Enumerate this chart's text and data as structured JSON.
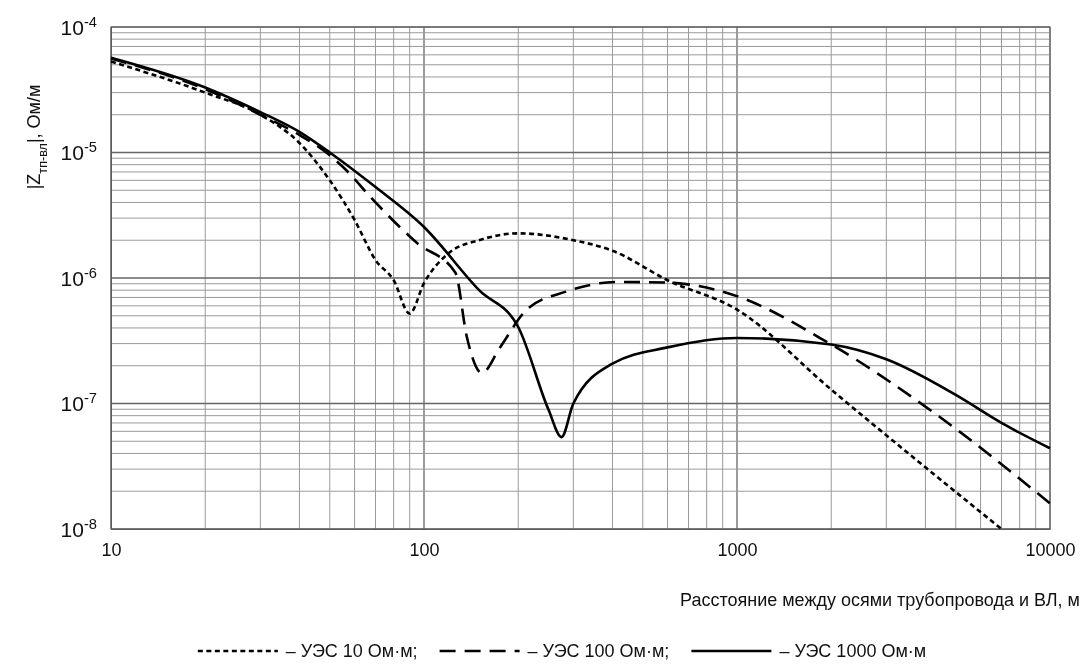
{
  "chart_data": {
    "type": "line",
    "xlabel": "Расстояние между осями трубопровода и ВЛ, м",
    "ylabel": "|Z$_{тп-вл}$|, Ом/м",
    "log": "xy",
    "grid": true,
    "legend": "bottom",
    "marker": "none",
    "xlim": [
      10,
      10000
    ],
    "ylim": [
      1e-08,
      0.0001
    ],
    "xticks": [
      10,
      {
        "value": 20,
        "label": null
      },
      {
        "value": 30,
        "label": null
      },
      {
        "value": 40,
        "label": null
      },
      {
        "value": 50,
        "label": null
      },
      {
        "value": 60,
        "label": null
      },
      {
        "value": 70,
        "label": null
      },
      {
        "value": 80,
        "label": null
      },
      {
        "value": 90,
        "label": null
      },
      100,
      {
        "value": 200,
        "label": null
      },
      {
        "value": 300,
        "label": null
      },
      {
        "value": 400,
        "label": null
      },
      {
        "value": 500,
        "label": null
      },
      {
        "value": 600,
        "label": null
      },
      {
        "value": 700,
        "label": null
      },
      {
        "value": 800,
        "label": null
      },
      {
        "value": 900,
        "label": null
      },
      1000,
      {
        "value": 2000,
        "label": null
      },
      {
        "value": 3000,
        "label": null
      },
      {
        "value": 4000,
        "label": null
      },
      {
        "value": 5000,
        "label": null
      },
      {
        "value": 6000,
        "label": null
      },
      {
        "value": 7000,
        "label": null
      },
      {
        "value": 8000,
        "label": null
      },
      {
        "value": 9000,
        "label": null
      },
      10000
    ],
    "yticks": [
      {
        "value": 1e-08,
        "label": "10$^{-8}$"
      },
      {
        "value": 2e-08,
        "label": null
      },
      {
        "value": 3e-08,
        "label": null
      },
      {
        "value": 4e-08,
        "label": null
      },
      {
        "value": 5e-08,
        "label": null
      },
      {
        "value": 6e-08,
        "label": null
      },
      {
        "value": 7e-08,
        "label": null
      },
      {
        "value": 8e-08,
        "label": null
      },
      {
        "value": 9e-08,
        "label": null
      },
      {
        "value": 1e-07,
        "label": "10$^{-7}$"
      },
      {
        "value": 2e-07,
        "label": null
      },
      {
        "value": 3e-07,
        "label": null
      },
      {
        "value": 4e-07,
        "label": null
      },
      {
        "value": 5e-07,
        "label": null
      },
      {
        "value": 6e-07,
        "label": null
      },
      {
        "value": 7e-07,
        "label": null
      },
      {
        "value": 8e-07,
        "label": null
      },
      {
        "value": 9e-07,
        "label": null
      },
      {
        "value": 1e-06,
        "label": "10$^{-6}$"
      },
      {
        "value": 2e-06,
        "label": null
      },
      {
        "value": 3e-06,
        "label": null
      },
      {
        "value": 4e-06,
        "label": null
      },
      {
        "value": 5e-06,
        "label": null
      },
      {
        "value": 6e-06,
        "label": null
      },
      {
        "value": 7e-06,
        "label": null
      },
      {
        "value": 8e-06,
        "label": null
      },
      {
        "value": 9e-06,
        "label": null
      },
      {
        "value": 1e-05,
        "label": "10$^{-5}$"
      },
      {
        "value": 2e-05,
        "label": null
      },
      {
        "value": 3e-05,
        "label": null
      },
      {
        "value": 4e-05,
        "label": null
      },
      {
        "value": 5e-05,
        "label": null
      },
      {
        "value": 6e-05,
        "label": null
      },
      {
        "value": 7e-05,
        "label": null
      },
      {
        "value": 8e-05,
        "label": null
      },
      {
        "value": 9e-05,
        "label": null
      },
      {
        "value": 0.0001,
        "label": "10$^{-4}$"
      }
    ],
    "series": [
      {
        "name": "– УЭС 10 Ом·м;",
        "color": "#000000",
        "line_style": "dotted",
        "x": [
          10,
          20,
          30,
          40,
          50,
          60,
          70,
          80,
          90,
          100,
          120,
          150,
          200,
          300,
          400,
          600,
          1000,
          2000,
          4000,
          7000
        ],
        "values": [
          5.3e-05,
          3e-05,
          2e-05,
          1.19e-05,
          6e-06,
          2.9e-06,
          1.39e-06,
          9.6e-07,
          5.2e-07,
          9.1e-07,
          1.58e-06,
          2e-06,
          2.27e-06,
          2e-06,
          1.65e-06,
          9.6e-07,
          5.6e-07,
          1.29e-07,
          3.1e-08,
          1e-08
        ]
      },
      {
        "name": "– УЭС 100 Ом·м;",
        "color": "#000000",
        "line_style": "dashed",
        "x": [
          10,
          20,
          30,
          40,
          50,
          55,
          70,
          95,
          126,
          137,
          153,
          175,
          213,
          285,
          414,
          595,
          930,
          2000,
          4270,
          10000
        ],
        "values": [
          5.6e-05,
          3.2e-05,
          2e-05,
          1.38e-05,
          9.5e-06,
          7.7e-06,
          4e-06,
          1.9e-06,
          1.1e-06,
          3.4e-07,
          1.75e-07,
          2.8e-07,
          5.6e-07,
          7.8e-07,
          9.3e-07,
          9.2e-07,
          7.6e-07,
          2.95e-07,
          8.4e-08,
          1.6e-08
        ]
      },
      {
        "name": "– УЭС 1000 Ом·м",
        "color": "#000000",
        "line_style": "solid",
        "x": [
          10,
          20,
          30,
          40,
          50,
          70,
          100,
          150,
          200,
          250,
          275,
          300,
          400,
          600,
          1000,
          2000,
          3000,
          5000,
          7000,
          10000
        ],
        "values": [
          5.7e-05,
          3.3e-05,
          2.1e-05,
          1.46e-05,
          1e-05,
          5.3e-06,
          2.55e-06,
          8e-07,
          4.07e-07,
          8.9e-08,
          5.4e-08,
          1e-07,
          2.08e-07,
          2.8e-07,
          3.33e-07,
          2.95e-07,
          2.25e-07,
          1.17e-07,
          7e-08,
          4.4e-08
        ]
      }
    ]
  }
}
